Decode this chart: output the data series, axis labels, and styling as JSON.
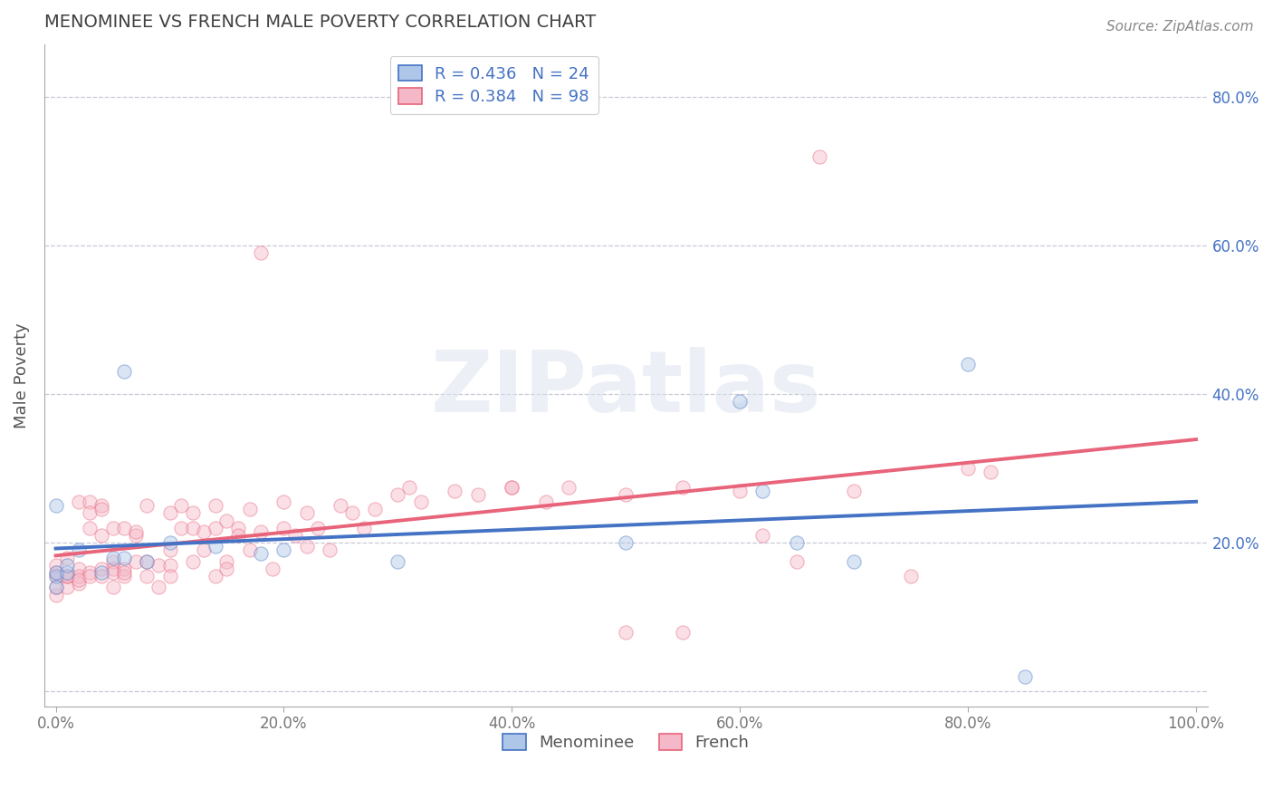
{
  "title": "MENOMINEE VS FRENCH MALE POVERTY CORRELATION CHART",
  "source": "Source: ZipAtlas.com",
  "ylabel": "Male Poverty",
  "xlim": [
    -0.01,
    1.01
  ],
  "ylim": [
    -0.02,
    0.87
  ],
  "xticks": [
    0.0,
    0.2,
    0.4,
    0.6,
    0.8,
    1.0
  ],
  "xticklabels": [
    "0.0%",
    "20.0%",
    "40.0%",
    "60.0%",
    "80.0%",
    "100.0%"
  ],
  "yticks_right": [
    0.2,
    0.4,
    0.6,
    0.8
  ],
  "yticklabels_right": [
    "20.0%",
    "40.0%",
    "60.0%",
    "80.0%"
  ],
  "menominee_color": "#aec6e8",
  "french_color": "#f4b8c8",
  "menominee_line_color": "#4472c4",
  "french_line_color": "#e8647a",
  "legend_text_color": "#4472c4",
  "R_menominee": 0.436,
  "N_menominee": 24,
  "R_french": 0.384,
  "N_french": 98,
  "watermark": "ZIPatlas",
  "menominee_data": [
    [
      0.0,
      0.25
    ],
    [
      0.0,
      0.155
    ],
    [
      0.0,
      0.16
    ],
    [
      0.0,
      0.14
    ],
    [
      0.01,
      0.16
    ],
    [
      0.01,
      0.17
    ],
    [
      0.02,
      0.19
    ],
    [
      0.04,
      0.16
    ],
    [
      0.05,
      0.18
    ],
    [
      0.06,
      0.18
    ],
    [
      0.06,
      0.43
    ],
    [
      0.08,
      0.175
    ],
    [
      0.1,
      0.2
    ],
    [
      0.14,
      0.195
    ],
    [
      0.18,
      0.185
    ],
    [
      0.2,
      0.19
    ],
    [
      0.3,
      0.175
    ],
    [
      0.5,
      0.2
    ],
    [
      0.6,
      0.39
    ],
    [
      0.62,
      0.27
    ],
    [
      0.65,
      0.2
    ],
    [
      0.7,
      0.175
    ],
    [
      0.8,
      0.44
    ],
    [
      0.85,
      0.02
    ]
  ],
  "french_data": [
    [
      0.0,
      0.155
    ],
    [
      0.0,
      0.16
    ],
    [
      0.0,
      0.13
    ],
    [
      0.0,
      0.14
    ],
    [
      0.0,
      0.17
    ],
    [
      0.01,
      0.155
    ],
    [
      0.01,
      0.18
    ],
    [
      0.01,
      0.155
    ],
    [
      0.01,
      0.14
    ],
    [
      0.01,
      0.155
    ],
    [
      0.02,
      0.165
    ],
    [
      0.02,
      0.145
    ],
    [
      0.02,
      0.155
    ],
    [
      0.02,
      0.15
    ],
    [
      0.02,
      0.255
    ],
    [
      0.03,
      0.16
    ],
    [
      0.03,
      0.255
    ],
    [
      0.03,
      0.24
    ],
    [
      0.03,
      0.155
    ],
    [
      0.03,
      0.22
    ],
    [
      0.04,
      0.165
    ],
    [
      0.04,
      0.25
    ],
    [
      0.04,
      0.245
    ],
    [
      0.04,
      0.21
    ],
    [
      0.04,
      0.155
    ],
    [
      0.05,
      0.22
    ],
    [
      0.05,
      0.175
    ],
    [
      0.05,
      0.165
    ],
    [
      0.05,
      0.16
    ],
    [
      0.05,
      0.14
    ],
    [
      0.06,
      0.22
    ],
    [
      0.06,
      0.165
    ],
    [
      0.06,
      0.155
    ],
    [
      0.06,
      0.16
    ],
    [
      0.07,
      0.21
    ],
    [
      0.07,
      0.215
    ],
    [
      0.07,
      0.175
    ],
    [
      0.08,
      0.25
    ],
    [
      0.08,
      0.175
    ],
    [
      0.08,
      0.155
    ],
    [
      0.09,
      0.14
    ],
    [
      0.09,
      0.17
    ],
    [
      0.1,
      0.24
    ],
    [
      0.1,
      0.19
    ],
    [
      0.1,
      0.17
    ],
    [
      0.1,
      0.155
    ],
    [
      0.11,
      0.22
    ],
    [
      0.11,
      0.25
    ],
    [
      0.12,
      0.24
    ],
    [
      0.12,
      0.22
    ],
    [
      0.12,
      0.175
    ],
    [
      0.13,
      0.215
    ],
    [
      0.13,
      0.19
    ],
    [
      0.14,
      0.25
    ],
    [
      0.14,
      0.22
    ],
    [
      0.14,
      0.155
    ],
    [
      0.15,
      0.23
    ],
    [
      0.15,
      0.175
    ],
    [
      0.15,
      0.165
    ],
    [
      0.16,
      0.22
    ],
    [
      0.16,
      0.21
    ],
    [
      0.17,
      0.245
    ],
    [
      0.17,
      0.19
    ],
    [
      0.18,
      0.215
    ],
    [
      0.18,
      0.59
    ],
    [
      0.19,
      0.165
    ],
    [
      0.2,
      0.255
    ],
    [
      0.2,
      0.22
    ],
    [
      0.21,
      0.21
    ],
    [
      0.22,
      0.24
    ],
    [
      0.22,
      0.195
    ],
    [
      0.23,
      0.22
    ],
    [
      0.24,
      0.19
    ],
    [
      0.25,
      0.25
    ],
    [
      0.26,
      0.24
    ],
    [
      0.27,
      0.22
    ],
    [
      0.28,
      0.245
    ],
    [
      0.3,
      0.265
    ],
    [
      0.31,
      0.275
    ],
    [
      0.32,
      0.255
    ],
    [
      0.35,
      0.27
    ],
    [
      0.37,
      0.265
    ],
    [
      0.4,
      0.275
    ],
    [
      0.4,
      0.275
    ],
    [
      0.43,
      0.255
    ],
    [
      0.45,
      0.275
    ],
    [
      0.5,
      0.265
    ],
    [
      0.5,
      0.08
    ],
    [
      0.55,
      0.275
    ],
    [
      0.55,
      0.08
    ],
    [
      0.6,
      0.27
    ],
    [
      0.62,
      0.21
    ],
    [
      0.65,
      0.175
    ],
    [
      0.67,
      0.72
    ],
    [
      0.7,
      0.27
    ],
    [
      0.75,
      0.155
    ],
    [
      0.8,
      0.3
    ],
    [
      0.82,
      0.295
    ]
  ],
  "background_color": "#ffffff",
  "grid_color": "#c8c8d8",
  "title_color": "#404040",
  "scatter_size": 120,
  "scatter_alpha": 0.45,
  "line_width": 2.8
}
